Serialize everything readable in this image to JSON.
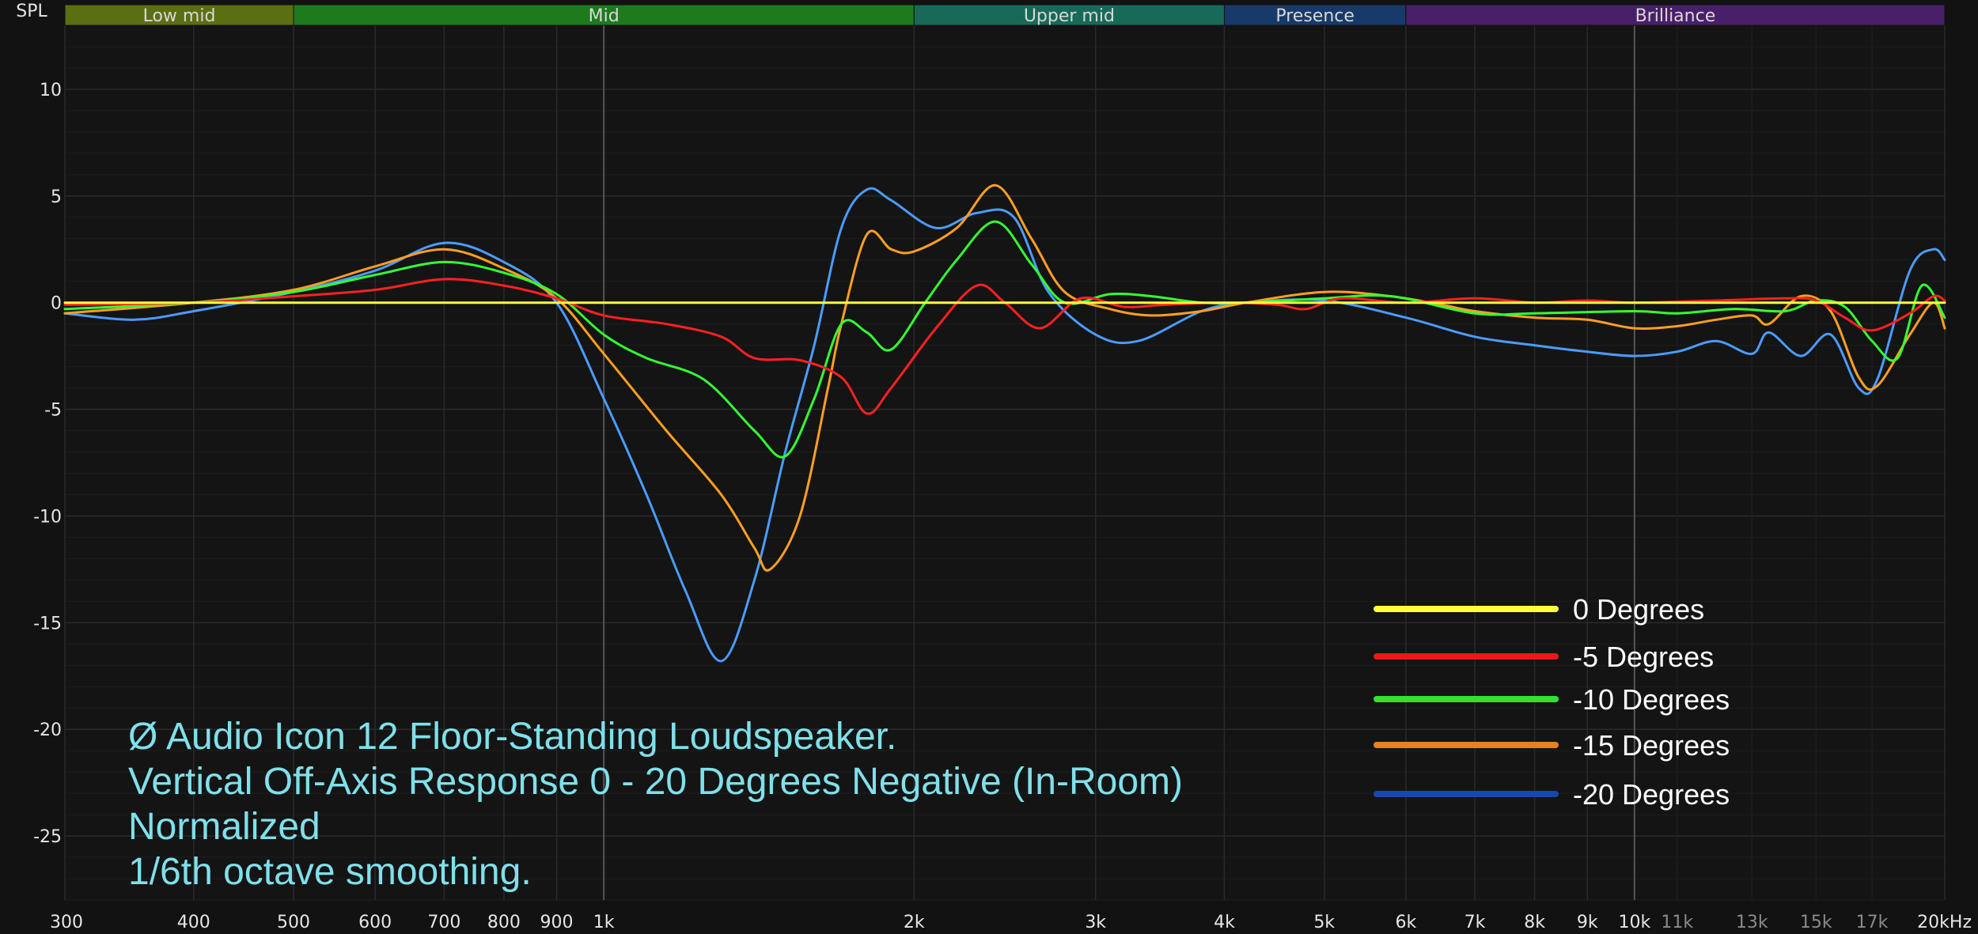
{
  "chart_data": {
    "type": "line",
    "y_axis_title": "SPL",
    "x_scale": "log",
    "xlim": [
      300,
      20000
    ],
    "ylim": [
      -28,
      13
    ],
    "y_ticks": [
      10,
      5,
      0,
      -5,
      -10,
      -15,
      -20,
      -25
    ],
    "y_tick_labels": [
      "10",
      "5",
      "0",
      "-5",
      "-10",
      "-15",
      "-20",
      "-25"
    ],
    "x_ticks": [
      {
        "value": 300,
        "label": "300",
        "minor": false
      },
      {
        "value": 400,
        "label": "400",
        "minor": false
      },
      {
        "value": 500,
        "label": "500",
        "minor": false
      },
      {
        "value": 600,
        "label": "600",
        "minor": false
      },
      {
        "value": 700,
        "label": "700",
        "minor": false
      },
      {
        "value": 800,
        "label": "800",
        "minor": false
      },
      {
        "value": 900,
        "label": "900",
        "minor": false
      },
      {
        "value": 1000,
        "label": "1k",
        "minor": false
      },
      {
        "value": 2000,
        "label": "2k",
        "minor": false
      },
      {
        "value": 3000,
        "label": "3k",
        "minor": false
      },
      {
        "value": 4000,
        "label": "4k",
        "minor": false
      },
      {
        "value": 5000,
        "label": "5k",
        "minor": false
      },
      {
        "value": 6000,
        "label": "6k",
        "minor": false
      },
      {
        "value": 7000,
        "label": "7k",
        "minor": false
      },
      {
        "value": 8000,
        "label": "8k",
        "minor": false
      },
      {
        "value": 9000,
        "label": "9k",
        "minor": false
      },
      {
        "value": 10000,
        "label": "10k",
        "minor": false
      },
      {
        "value": 11000,
        "label": "11k",
        "minor": true
      },
      {
        "value": 13000,
        "label": "13k",
        "minor": true
      },
      {
        "value": 15000,
        "label": "15k",
        "minor": true
      },
      {
        "value": 17000,
        "label": "17k",
        "minor": true
      },
      {
        "value": 20000,
        "label": "20kHz",
        "minor": false
      }
    ],
    "bands": [
      {
        "label": "Low mid",
        "from": 300,
        "to": 500,
        "color": "#5c6e12"
      },
      {
        "label": "Mid",
        "from": 500,
        "to": 2000,
        "color": "#1d7a1d"
      },
      {
        "label": "Upper mid",
        "from": 2000,
        "to": 4000,
        "color": "#176a58"
      },
      {
        "label": "Presence",
        "from": 4000,
        "to": 6000,
        "color": "#173a6a"
      },
      {
        "label": "Brilliance",
        "from": 6000,
        "to": 20000,
        "color": "#4a1f6a"
      }
    ],
    "grid": true,
    "series": [
      {
        "name": "0 Degrees",
        "color": "#ffff3a",
        "points": [
          [
            300,
            0
          ],
          [
            20000,
            0
          ]
        ]
      },
      {
        "name": "-5 Degrees",
        "color": "#ff2020",
        "points": [
          [
            300,
            -0.1
          ],
          [
            400,
            0
          ],
          [
            500,
            0.3
          ],
          [
            600,
            0.6
          ],
          [
            700,
            1.1
          ],
          [
            800,
            0.8
          ],
          [
            900,
            0.2
          ],
          [
            1000,
            -0.6
          ],
          [
            1150,
            -1
          ],
          [
            1300,
            -1.6
          ],
          [
            1400,
            -2.6
          ],
          [
            1550,
            -2.7
          ],
          [
            1700,
            -3.5
          ],
          [
            1800,
            -5.2
          ],
          [
            1900,
            -4
          ],
          [
            2100,
            -1.2
          ],
          [
            2300,
            0.8
          ],
          [
            2450,
            0
          ],
          [
            2650,
            -1.2
          ],
          [
            2900,
            0.2
          ],
          [
            3200,
            -0.2
          ],
          [
            3500,
            -0.1
          ],
          [
            4000,
            0
          ],
          [
            4500,
            -0.1
          ],
          [
            4800,
            -0.3
          ],
          [
            5200,
            0.2
          ],
          [
            6000,
            0
          ],
          [
            7000,
            0.2
          ],
          [
            8000,
            0
          ],
          [
            9000,
            0.1
          ],
          [
            10000,
            0
          ],
          [
            12000,
            0.1
          ],
          [
            14000,
            0.2
          ],
          [
            15000,
            0.1
          ],
          [
            16000,
            -0.7
          ],
          [
            17000,
            -1.3
          ],
          [
            18500,
            -0.5
          ],
          [
            19500,
            0.3
          ],
          [
            20000,
            0.1
          ]
        ]
      },
      {
        "name": "-10 Degrees",
        "color": "#33ff33",
        "points": [
          [
            300,
            -0.3
          ],
          [
            400,
            0
          ],
          [
            500,
            0.5
          ],
          [
            600,
            1.3
          ],
          [
            700,
            1.9
          ],
          [
            800,
            1.4
          ],
          [
            900,
            0.4
          ],
          [
            1000,
            -1.5
          ],
          [
            1100,
            -2.6
          ],
          [
            1250,
            -3.6
          ],
          [
            1400,
            -6
          ],
          [
            1500,
            -7.2
          ],
          [
            1600,
            -4.5
          ],
          [
            1700,
            -1
          ],
          [
            1800,
            -1.4
          ],
          [
            1900,
            -2.2
          ],
          [
            2050,
            0
          ],
          [
            2200,
            2
          ],
          [
            2400,
            3.8
          ],
          [
            2600,
            1.8
          ],
          [
            2800,
            0
          ],
          [
            3100,
            0.4
          ],
          [
            3400,
            0.3
          ],
          [
            3800,
            0
          ],
          [
            4200,
            0
          ],
          [
            5000,
            0.2
          ],
          [
            5800,
            0.3
          ],
          [
            7000,
            -0.5
          ],
          [
            8000,
            -0.5
          ],
          [
            10000,
            -0.4
          ],
          [
            11000,
            -0.5
          ],
          [
            12500,
            -0.3
          ],
          [
            14000,
            -0.4
          ],
          [
            15000,
            0.1
          ],
          [
            16000,
            -0.2
          ],
          [
            17000,
            -1.8
          ],
          [
            18000,
            -2.6
          ],
          [
            19000,
            0.8
          ],
          [
            20000,
            -0.7
          ]
        ]
      },
      {
        "name": "-15 Degrees",
        "color": "#ff9e22",
        "points": [
          [
            300,
            -0.5
          ],
          [
            400,
            0
          ],
          [
            500,
            0.6
          ],
          [
            600,
            1.7
          ],
          [
            700,
            2.5
          ],
          [
            800,
            1.6
          ],
          [
            900,
            0.2
          ],
          [
            1000,
            -2.4
          ],
          [
            1150,
            -6
          ],
          [
            1300,
            -9
          ],
          [
            1400,
            -11.5
          ],
          [
            1450,
            -12.5
          ],
          [
            1550,
            -10
          ],
          [
            1650,
            -4
          ],
          [
            1700,
            -1
          ],
          [
            1800,
            3.2
          ],
          [
            1900,
            2.5
          ],
          [
            2000,
            2.4
          ],
          [
            2200,
            3.5
          ],
          [
            2400,
            5.5
          ],
          [
            2600,
            3
          ],
          [
            2800,
            0.5
          ],
          [
            3100,
            -0.3
          ],
          [
            3400,
            -0.6
          ],
          [
            3800,
            -0.4
          ],
          [
            4200,
            0
          ],
          [
            5000,
            0.5
          ],
          [
            5800,
            0.3
          ],
          [
            6500,
            -0.1
          ],
          [
            7000,
            -0.4
          ],
          [
            8000,
            -0.7
          ],
          [
            9000,
            -0.8
          ],
          [
            10000,
            -1.2
          ],
          [
            11000,
            -1.1
          ],
          [
            12000,
            -0.8
          ],
          [
            13000,
            -0.6
          ],
          [
            13500,
            -1
          ],
          [
            14500,
            0.3
          ],
          [
            15500,
            -0.4
          ],
          [
            16500,
            -3.5
          ],
          [
            17200,
            -3.9
          ],
          [
            18500,
            -1.5
          ],
          [
            19500,
            0
          ],
          [
            20000,
            -1.2
          ]
        ]
      },
      {
        "name": "-20 Degrees",
        "color": "#4a9cff",
        "points": [
          [
            300,
            -0.5
          ],
          [
            350,
            -0.8
          ],
          [
            400,
            -0.4
          ],
          [
            500,
            0.5
          ],
          [
            600,
            1.5
          ],
          [
            700,
            2.8
          ],
          [
            800,
            1.9
          ],
          [
            900,
            0
          ],
          [
            1000,
            -4.5
          ],
          [
            1100,
            -9
          ],
          [
            1200,
            -13.5
          ],
          [
            1300,
            -16.8
          ],
          [
            1400,
            -13
          ],
          [
            1500,
            -7
          ],
          [
            1600,
            -2
          ],
          [
            1700,
            3.5
          ],
          [
            1800,
            5.3
          ],
          [
            1900,
            4.8
          ],
          [
            2100,
            3.5
          ],
          [
            2300,
            4.2
          ],
          [
            2500,
            4
          ],
          [
            2700,
            0.5
          ],
          [
            3000,
            -1.5
          ],
          [
            3300,
            -1.8
          ],
          [
            3800,
            -0.4
          ],
          [
            4200,
            0
          ],
          [
            5000,
            0.1
          ],
          [
            6000,
            -0.7
          ],
          [
            7000,
            -1.6
          ],
          [
            8000,
            -2
          ],
          [
            9000,
            -2.3
          ],
          [
            10000,
            -2.5
          ],
          [
            11000,
            -2.3
          ],
          [
            12000,
            -1.8
          ],
          [
            13000,
            -2.4
          ],
          [
            13500,
            -1.4
          ],
          [
            14500,
            -2.5
          ],
          [
            15500,
            -1.5
          ],
          [
            16500,
            -4
          ],
          [
            17200,
            -3.6
          ],
          [
            18500,
            1.5
          ],
          [
            19500,
            2.5
          ],
          [
            20000,
            2
          ]
        ]
      }
    ],
    "legend": {
      "placement": "bottom-right"
    },
    "annotation_lines": [
      "Ø Audio Icon 12 Floor-Standing Loudspeaker.",
      "Vertical Off-Axis Response 0 - 20 Degrees Negative (In-Room)",
      "Normalized",
      "1/6th octave smoothing."
    ]
  }
}
